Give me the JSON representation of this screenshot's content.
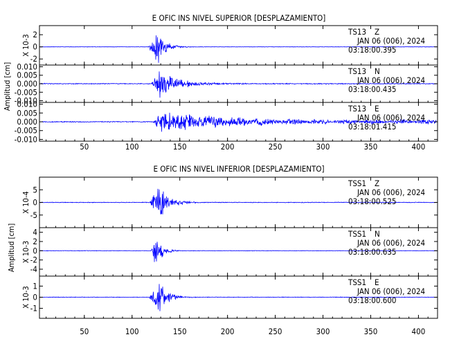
{
  "figure": {
    "ylabel": "Amplitud [cm]",
    "xticks": [
      50,
      100,
      150,
      200,
      250,
      300,
      350,
      400
    ],
    "x_range": [
      3,
      420
    ]
  },
  "colors": {
    "trace": "#0000ff",
    "axes": "#000000"
  },
  "chart_data": [
    {
      "type": "line",
      "title": "E OFIC INS NIVEL SUPERIOR [DESPLAZAMIENTO]",
      "xlabel": "",
      "ylabel": "Amplitud [cm]",
      "xlim": [
        3,
        420
      ],
      "xticks": [
        50,
        100,
        150,
        200,
        250,
        300,
        350,
        400
      ],
      "panels": [
        {
          "station": "TS13",
          "component": "Z",
          "date": "JAN 06 (006), 2024",
          "time": "03:18:00.395",
          "scale": "10-3",
          "ylim": [
            -3,
            3.5
          ],
          "yticks": [
            -2,
            0,
            2
          ],
          "envelope": {
            "onset": 117,
            "peak_t": 128,
            "peak_amp": 3.3,
            "decay": 7,
            "noise": 0.04
          }
        },
        {
          "station": "TS13",
          "component": "N",
          "date": "JAN 06 (006), 2024",
          "time": "03:18:00.435",
          "scale": "",
          "ylim": [
            -0.011,
            0.011
          ],
          "yticks": [
            -0.01,
            -0.005,
            0.0,
            0.005,
            0.01
          ],
          "envelope": {
            "onset": 120,
            "peak_t": 129,
            "peak_amp": 0.0095,
            "decay": 18,
            "noise": 0.0003
          }
        },
        {
          "station": "TS13",
          "component": "E",
          "date": "JAN 06 (006), 2024",
          "time": "03:18:01.415",
          "scale": "",
          "ylim": [
            -0.011,
            0.011
          ],
          "yticks": [
            -0.01,
            -0.005,
            0.0,
            0.005,
            0.01
          ],
          "envelope": {
            "onset": 122,
            "peak_t": 131,
            "peak_amp": 0.0065,
            "decay": 55,
            "noise": 0.0003
          }
        }
      ]
    },
    {
      "type": "line",
      "title": "E OFIC INS NIVEL INFERIOR [DESPLAZAMIENTO]",
      "xlabel": "",
      "ylabel": "Amplitud [cm]",
      "xlim": [
        3,
        420
      ],
      "xticks": [
        50,
        100,
        150,
        200,
        250,
        300,
        350,
        400
      ],
      "panels": [
        {
          "station": "TSS1",
          "component": "Z",
          "date": "JAN 06 (006), 2024",
          "time": "03:18:00.525",
          "scale": "10-4",
          "ylim": [
            -10,
            10
          ],
          "yticks": [
            -5,
            0,
            5
          ],
          "envelope": {
            "onset": 118,
            "peak_t": 130,
            "peak_amp": 8.5,
            "decay": 9,
            "noise": 0.15
          }
        },
        {
          "station": "TSS1",
          "component": "N",
          "date": "JAN 06 (006), 2024",
          "time": "03:18:00.635",
          "scale": "10-3",
          "ylim": [
            -5.5,
            5
          ],
          "yticks": [
            -4,
            -2,
            0,
            2,
            4
          ],
          "envelope": {
            "onset": 120,
            "peak_t": 125,
            "peak_amp": 4.4,
            "decay": 6,
            "noise": 0.06
          }
        },
        {
          "station": "TSS1",
          "component": "E",
          "date": "JAN 06 (006), 2024",
          "time": "03:18:00.600",
          "scale": "10-3",
          "ylim": [
            -1.9,
            1.9
          ],
          "yticks": [
            -1,
            0,
            1
          ],
          "envelope": {
            "onset": 118,
            "peak_t": 129,
            "peak_amp": 1.6,
            "decay": 8,
            "noise": 0.03
          }
        }
      ]
    }
  ]
}
